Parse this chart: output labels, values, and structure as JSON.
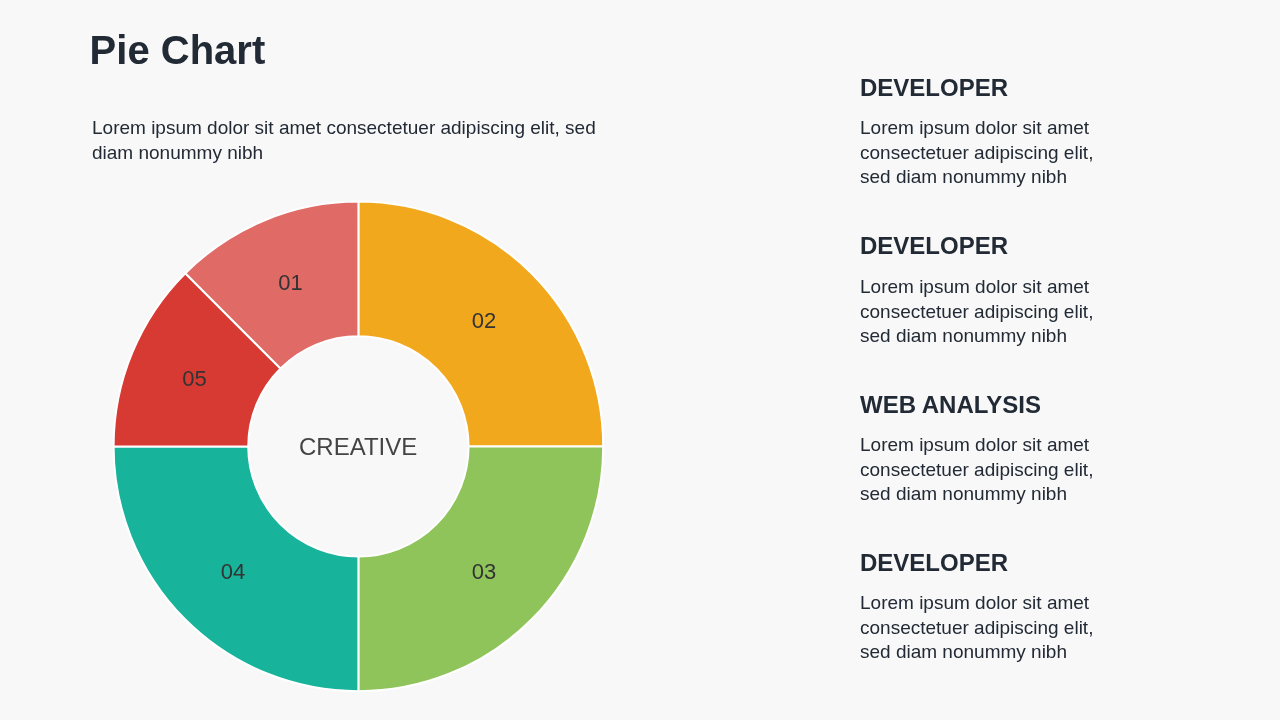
{
  "chart_data": {
    "type": "donut",
    "title": "Pie Chart",
    "subtitle": "Lorem ipsum dolor sit amet consectetuer adipiscing elit, sed diam nonummy nibh",
    "categories": [
      "02",
      "03",
      "04",
      "05",
      "01"
    ],
    "values": [
      25,
      25,
      25,
      12.5,
      12.5
    ],
    "colors": [
      "#f2a81d",
      "#8fc45a",
      "#17b39a",
      "#d63a32",
      "#e06a66"
    ],
    "annotations": [
      "CREATIVE",
      "DEVELOPER",
      "Lorem ipsum dolor sit amet consectetuer adipiscing elit, sed diam nonummy nibh",
      "DEVELOPER",
      "Lorem ipsum dolor sit amet consectetuer adipiscing elit, sed diam nonummy nibh",
      "WEB ANALYSIS",
      "Lorem ipsum dolor sit amet consectetuer adipiscing elit, sed diam nonummy nibh",
      "DEVELOPER",
      "Lorem ipsum dolor sit amet consectetuer adipiscing elit, sed diam nonummy nibh"
    ],
    "legend": false
  }
}
